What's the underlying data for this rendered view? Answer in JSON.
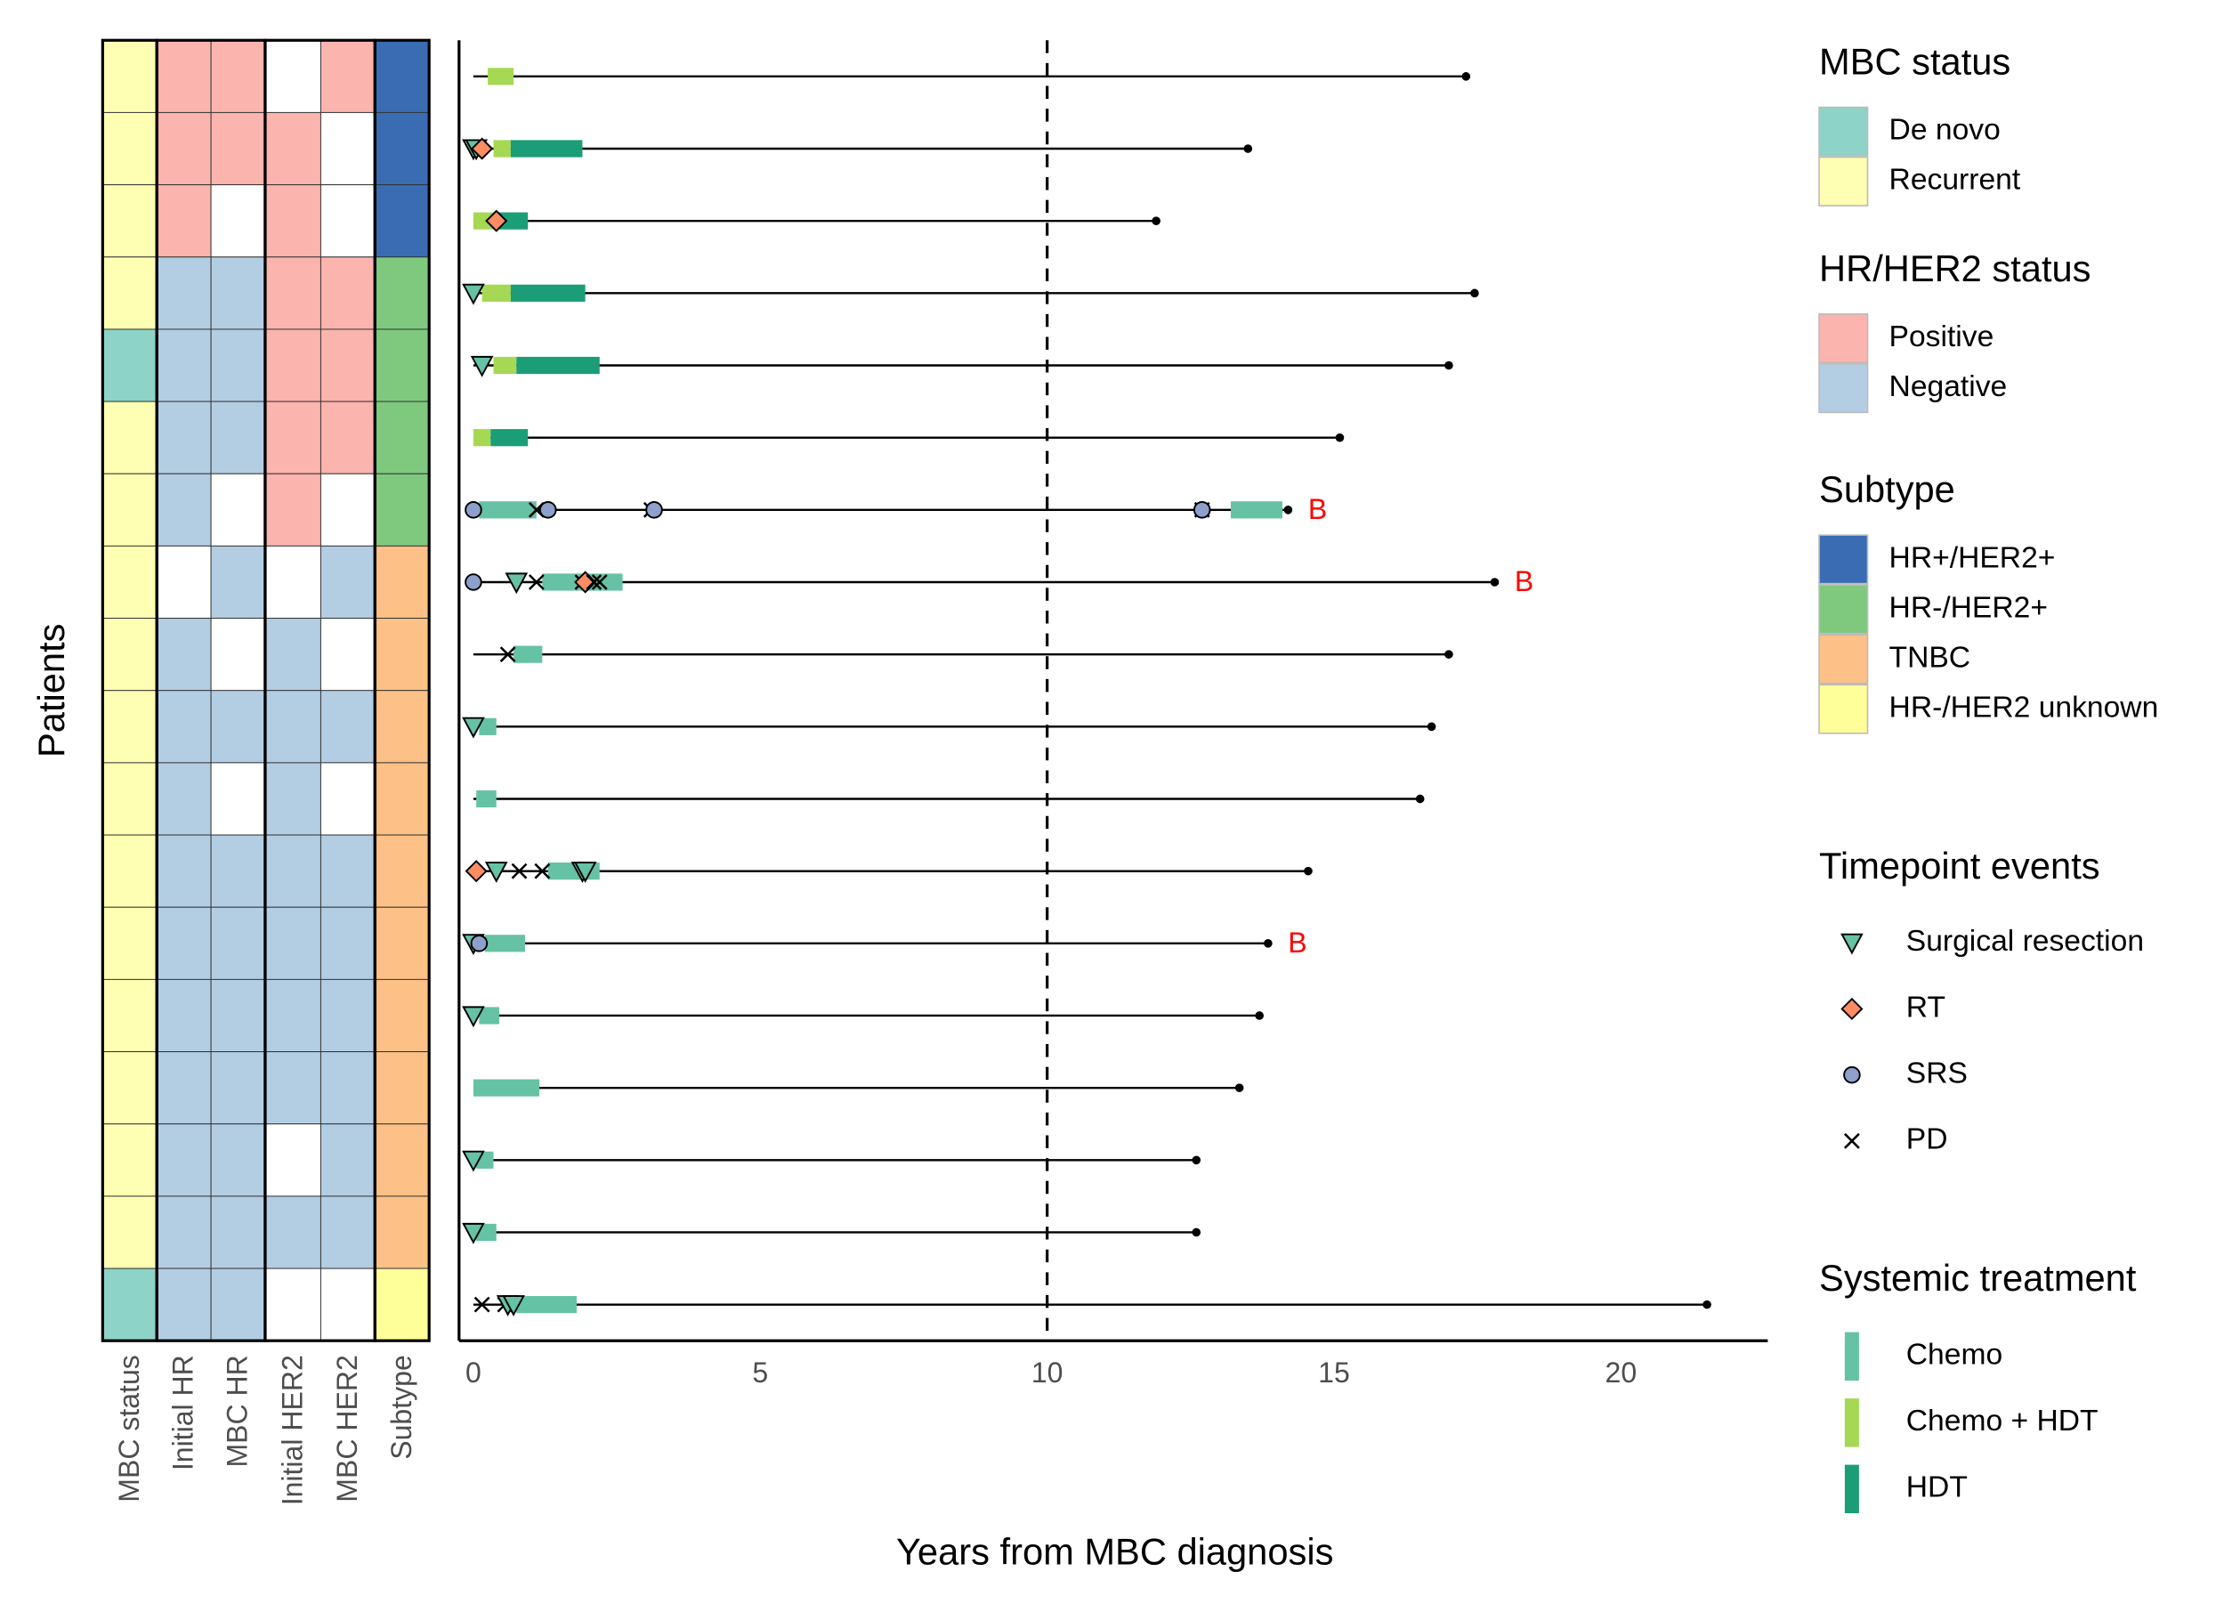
{
  "chart_data": [
    {
      "type": "heatmap",
      "y_label": "Patients",
      "columns": [
        "MBC status",
        "Initial HR",
        "MBC HR",
        "Initial HER2",
        "MBC HER2",
        "Subtype"
      ],
      "rows": [
        [
          1,
          0,
          0,
          null,
          0,
          0
        ],
        [
          1,
          0,
          0,
          0,
          null,
          0
        ],
        [
          1,
          0,
          null,
          0,
          null,
          0
        ],
        [
          1,
          1,
          1,
          0,
          0,
          1
        ],
        [
          0,
          1,
          1,
          0,
          0,
          1
        ],
        [
          1,
          1,
          1,
          0,
          0,
          1
        ],
        [
          1,
          1,
          null,
          0,
          null,
          1
        ],
        [
          1,
          null,
          1,
          null,
          1,
          2
        ],
        [
          1,
          1,
          null,
          1,
          null,
          2
        ],
        [
          1,
          1,
          1,
          1,
          1,
          2
        ],
        [
          1,
          1,
          null,
          1,
          null,
          2
        ],
        [
          1,
          1,
          1,
          1,
          1,
          2
        ],
        [
          1,
          1,
          1,
          1,
          1,
          2
        ],
        [
          1,
          1,
          1,
          1,
          1,
          2
        ],
        [
          1,
          1,
          1,
          1,
          1,
          2
        ],
        [
          1,
          1,
          1,
          null,
          1,
          2
        ],
        [
          1,
          1,
          1,
          1,
          1,
          2
        ],
        [
          0,
          1,
          1,
          null,
          null,
          3
        ]
      ],
      "legends": [
        {
          "title": "MBC status",
          "items": [
            {
              "name": "De novo",
              "color": "#8dd3c7"
            },
            {
              "name": "Recurrent",
              "color": "#ffffb3"
            }
          ]
        },
        {
          "title": "HR/HER2 status",
          "items": [
            {
              "name": "Positive",
              "color": "#fbb4ae"
            },
            {
              "name": "Negative",
              "color": "#b3cde3"
            }
          ]
        },
        {
          "title": "Subtype",
          "items": [
            {
              "name": "HR+/HER2+",
              "color": "#3a6cb4"
            },
            {
              "name": "HR-/HER2+",
              "color": "#7fc97f"
            },
            {
              "name": "TNBC",
              "color": "#fdc086"
            },
            {
              "name": "HR-/HER2 unknown",
              "color": "#ffff99"
            }
          ]
        }
      ]
    },
    {
      "type": "swimmer",
      "x_label": "Years from MBC diagnosis",
      "xlim": [
        -0.25,
        22.56
      ],
      "xticks": [
        0,
        5,
        10,
        15,
        20
      ],
      "vline": 10,
      "patients": [
        {
          "end": 17.3,
          "treatments": [
            {
              "start": 0.25,
              "end": 0.7,
              "kind": 1
            }
          ],
          "events": []
        },
        {
          "end": 13.5,
          "treatments": [
            {
              "start": 0.35,
              "end": 0.65,
              "kind": 1
            },
            {
              "start": 0.65,
              "end": 1.9,
              "kind": 2
            }
          ],
          "events": [
            {
              "time": 0,
              "kind": 0
            },
            {
              "time": 0.05,
              "kind": 0
            },
            {
              "time": 0.15,
              "kind": 1
            }
          ]
        },
        {
          "end": 11.9,
          "treatments": [
            {
              "start": 0,
              "end": 0.4,
              "kind": 1
            },
            {
              "start": 0.4,
              "end": 0.95,
              "kind": 2
            }
          ],
          "events": [
            {
              "time": 0.4,
              "kind": 1
            }
          ]
        },
        {
          "end": 17.45,
          "treatments": [
            {
              "start": 0.15,
              "end": 0.65,
              "kind": 1
            },
            {
              "start": 0.65,
              "end": 1.95,
              "kind": 2
            }
          ],
          "events": [
            {
              "time": 0,
              "kind": 0
            }
          ]
        },
        {
          "end": 17.0,
          "treatments": [
            {
              "start": 0.35,
              "end": 0.75,
              "kind": 1
            },
            {
              "start": 0.75,
              "end": 2.2,
              "kind": 2
            }
          ],
          "events": [
            {
              "time": 0.15,
              "kind": 0
            }
          ]
        },
        {
          "end": 15.1,
          "treatments": [
            {
              "start": 0,
              "end": 0.3,
              "kind": 1
            },
            {
              "start": 0.3,
              "end": 0.95,
              "kind": 2
            }
          ],
          "events": []
        },
        {
          "end": 14.2,
          "label": "B",
          "treatments": [
            {
              "start": 0.1,
              "end": 1.1,
              "kind": 0
            },
            {
              "start": 13.2,
              "end": 14.1,
              "kind": 0
            }
          ],
          "events": [
            {
              "time": 0,
              "kind": 2
            },
            {
              "time": 1.1,
              "kind": 3
            },
            {
              "time": 1.3,
              "kind": 2
            },
            {
              "time": 3.1,
              "kind": 3
            },
            {
              "time": 3.15,
              "kind": 2
            },
            {
              "time": 12.7,
              "kind": 3
            },
            {
              "time": 12.7,
              "kind": 2
            }
          ]
        },
        {
          "end": 17.8,
          "label": "B",
          "treatments": [
            {
              "start": 1.2,
              "end": 2.6,
              "kind": 0
            }
          ],
          "events": [
            {
              "time": 0,
              "kind": 2
            },
            {
              "time": 0.75,
              "kind": 0
            },
            {
              "time": 1.1,
              "kind": 3
            },
            {
              "time": 1.9,
              "kind": 3
            },
            {
              "time": 1.95,
              "kind": 1
            },
            {
              "time": 2.1,
              "kind": 3
            },
            {
              "time": 2.2,
              "kind": 3
            }
          ]
        },
        {
          "end": 17.0,
          "treatments": [
            {
              "start": 0.7,
              "end": 1.2,
              "kind": 0
            }
          ],
          "events": [
            {
              "time": 0.6,
              "kind": 3
            }
          ]
        },
        {
          "end": 16.7,
          "treatments": [
            {
              "start": 0.1,
              "end": 0.4,
              "kind": 0
            }
          ],
          "events": [
            {
              "time": 0,
              "kind": 0
            }
          ]
        },
        {
          "end": 16.5,
          "treatments": [
            {
              "start": 0.05,
              "end": 0.4,
              "kind": 0
            }
          ],
          "events": []
        },
        {
          "end": 14.55,
          "treatments": [
            {
              "start": 1.3,
              "end": 2.2,
              "kind": 0
            }
          ],
          "events": [
            {
              "time": 0.05,
              "kind": 1
            },
            {
              "time": 0.4,
              "kind": 0
            },
            {
              "time": 0.8,
              "kind": 3
            },
            {
              "time": 1.2,
              "kind": 3
            },
            {
              "time": 1.9,
              "kind": 0
            },
            {
              "time": 1.95,
              "kind": 0
            }
          ]
        },
        {
          "end": 13.85,
          "label": "B",
          "treatments": [
            {
              "start": 0.2,
              "end": 0.9,
              "kind": 0
            }
          ],
          "events": [
            {
              "time": 0,
              "kind": 0
            },
            {
              "time": 0.1,
              "kind": 2
            }
          ]
        },
        {
          "end": 13.7,
          "treatments": [
            {
              "start": 0.1,
              "end": 0.45,
              "kind": 0
            }
          ],
          "events": [
            {
              "time": 0,
              "kind": 0
            }
          ]
        },
        {
          "end": 13.35,
          "treatments": [
            {
              "start": 0,
              "end": 1.15,
              "kind": 0
            }
          ],
          "events": []
        },
        {
          "end": 12.6,
          "treatments": [
            {
              "start": 0.05,
              "end": 0.35,
              "kind": 0
            }
          ],
          "events": [
            {
              "time": 0,
              "kind": 0
            }
          ]
        },
        {
          "end": 12.6,
          "treatments": [
            {
              "start": 0.05,
              "end": 0.4,
              "kind": 0
            }
          ],
          "events": [
            {
              "time": 0,
              "kind": 0
            }
          ]
        },
        {
          "end": 21.5,
          "treatments": [
            {
              "start": 0.75,
              "end": 1.8,
              "kind": 0
            }
          ],
          "events": [
            {
              "time": 0.15,
              "kind": 3
            },
            {
              "time": 0.55,
              "kind": 3
            },
            {
              "time": 0.6,
              "kind": 0
            },
            {
              "time": 0.7,
              "kind": 0
            }
          ]
        }
      ],
      "legends": [
        {
          "title": "Timepoint events",
          "items": [
            {
              "name": "Surgical resection",
              "color": "#66c2a5"
            },
            {
              "name": "RT",
              "color": "#fc8d62"
            },
            {
              "name": "SRS",
              "color": "#8da0cb"
            },
            {
              "name": "PD",
              "color": "#000000"
            }
          ]
        },
        {
          "title": "Systemic treatment",
          "items": [
            {
              "name": "Chemo",
              "color": "#66c2a5"
            },
            {
              "name": "Chemo + HDT",
              "color": "#a6d854"
            },
            {
              "name": "HDT",
              "color": "#1b9e77"
            }
          ]
        }
      ]
    }
  ]
}
